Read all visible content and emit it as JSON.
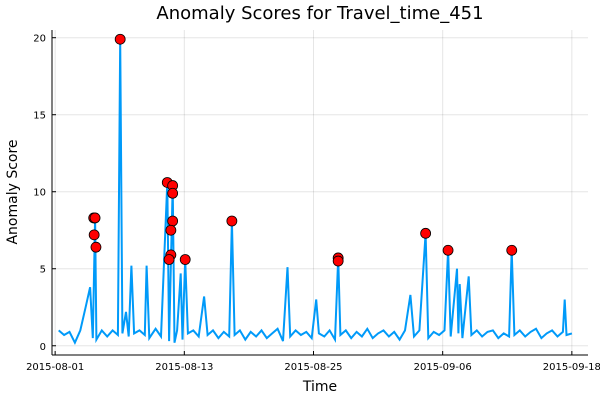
{
  "chart_data": {
    "type": "line",
    "title": "Anomaly Scores for Travel_time_451",
    "x_label": "Time",
    "y_label": "Anomaly Score",
    "xlim": [
      "2015-07-31 17:00",
      "2015-09-19 12:00"
    ],
    "xticks": [
      "2015-08-01",
      "2015-08-13",
      "2015-08-25",
      "2015-09-06",
      "2015-09-18"
    ],
    "ylim": [
      -0.6,
      20.5
    ],
    "yticks": [
      0,
      5,
      10,
      15,
      20
    ],
    "grid": true,
    "series": [
      {
        "kind": "line",
        "color": "#009af9",
        "x": [
          "2015-08-01 08:00",
          "2015-08-01 20:00",
          "2015-08-02 08:00",
          "2015-08-02 20:00",
          "2015-08-03 08:00",
          "2015-08-03 20:00",
          "2015-08-04 06:00",
          "2015-08-04 12:00",
          "2015-08-04 17:00",
          "2015-08-04 20:00",
          "2015-08-05 08:00",
          "2015-08-05 20:00",
          "2015-08-06 08:00",
          "2015-08-06 20:00",
          "2015-08-07 01:00",
          "2015-08-07 06:00",
          "2015-08-07 14:00",
          "2015-08-07 20:00",
          "2015-08-08 02:00",
          "2015-08-08 08:00",
          "2015-08-08 20:00",
          "2015-08-09 08:00",
          "2015-08-09 12:00",
          "2015-08-09 18:00",
          "2015-08-10 08:00",
          "2015-08-10 20:00",
          "2015-08-11 10:00",
          "2015-08-11 14:00",
          "2015-08-11 22:00",
          "2015-08-12 02:00",
          "2015-08-12 08:00",
          "2015-08-12 16:00",
          "2015-08-12 20:00",
          "2015-08-13 02:00",
          "2015-08-13 08:00",
          "2015-08-13 20:00",
          "2015-08-14 08:00",
          "2015-08-14 20:00",
          "2015-08-15 04:00",
          "2015-08-15 16:00",
          "2015-08-16 04:00",
          "2015-08-16 16:00",
          "2015-08-17 04:00",
          "2015-08-17 10:00",
          "2015-08-17 16:00",
          "2015-08-18 04:00",
          "2015-08-18 16:00",
          "2015-08-19 04:00",
          "2015-08-19 16:00",
          "2015-08-20 04:00",
          "2015-08-20 16:00",
          "2015-08-21 04:00",
          "2015-08-21 16:00",
          "2015-08-22 04:00",
          "2015-08-22 14:00",
          "2015-08-22 20:00",
          "2015-08-23 08:00",
          "2015-08-23 20:00",
          "2015-08-24 08:00",
          "2015-08-24 20:00",
          "2015-08-25 06:00",
          "2015-08-25 12:00",
          "2015-08-26 00:00",
          "2015-08-26 12:00",
          "2015-08-27 00:00",
          "2015-08-27 07:00",
          "2015-08-27 12:00",
          "2015-08-28 00:00",
          "2015-08-28 12:00",
          "2015-08-29 00:00",
          "2015-08-29 12:00",
          "2015-08-30 00:00",
          "2015-08-30 12:00",
          "2015-08-31 00:00",
          "2015-08-31 12:00",
          "2015-09-01 00:00",
          "2015-09-01 12:00",
          "2015-09-02 00:00",
          "2015-09-02 12:00",
          "2015-09-03 00:00",
          "2015-09-03 08:00",
          "2015-09-03 20:00",
          "2015-09-04 10:00",
          "2015-09-04 16:00",
          "2015-09-05 04:00",
          "2015-09-05 16:00",
          "2015-09-06 04:00",
          "2015-09-06 12:00",
          "2015-09-06 18:00",
          "2015-09-07 08:00",
          "2015-09-07 11:00",
          "2015-09-07 14:00",
          "2015-09-07 20:00",
          "2015-09-08 10:00",
          "2015-09-08 16:00",
          "2015-09-09 04:00",
          "2015-09-09 16:00",
          "2015-09-10 04:00",
          "2015-09-10 16:00",
          "2015-09-11 04:00",
          "2015-09-11 16:00",
          "2015-09-12 04:00",
          "2015-09-12 10:00",
          "2015-09-12 16:00",
          "2015-09-13 04:00",
          "2015-09-13 16:00",
          "2015-09-14 04:00",
          "2015-09-14 16:00",
          "2015-09-15 04:00",
          "2015-09-15 16:00",
          "2015-09-16 04:00",
          "2015-09-16 16:00",
          "2015-09-17 04:00",
          "2015-09-17 08:00",
          "2015-09-17 12:00",
          "2015-09-18 00:00"
        ],
        "values": [
          1.0,
          0.7,
          0.9,
          0.2,
          1.0,
          2.5,
          3.8,
          0.5,
          8.3,
          0.4,
          1.0,
          0.6,
          1.0,
          0.7,
          19.9,
          0.8,
          2.2,
          0.6,
          5.2,
          0.8,
          1.0,
          0.7,
          5.2,
          0.5,
          1.1,
          0.6,
          10.6,
          0.3,
          10.4,
          0.2,
          1.0,
          4.7,
          0.4,
          5.6,
          0.8,
          1.0,
          0.6,
          3.2,
          0.7,
          1.0,
          0.5,
          0.9,
          0.6,
          8.1,
          0.7,
          1.0,
          0.4,
          0.9,
          0.6,
          1.0,
          0.5,
          0.8,
          1.1,
          0.3,
          5.1,
          0.6,
          1.0,
          0.7,
          0.9,
          0.5,
          3.0,
          0.8,
          0.6,
          1.0,
          0.4,
          5.7,
          0.7,
          1.0,
          0.5,
          0.9,
          0.6,
          1.1,
          0.5,
          0.8,
          1.0,
          0.6,
          0.9,
          0.4,
          1.0,
          3.3,
          0.6,
          1.0,
          7.3,
          0.5,
          0.9,
          0.7,
          1.0,
          6.2,
          0.6,
          5.0,
          0.8,
          4.0,
          0.5,
          4.5,
          0.7,
          1.0,
          0.6,
          0.9,
          1.0,
          0.5,
          0.8,
          0.6,
          6.2,
          0.7,
          1.0,
          0.6,
          0.9,
          1.1,
          0.5,
          0.8,
          1.0,
          0.6,
          0.9,
          3.0,
          0.7,
          0.8
        ]
      },
      {
        "kind": "scatter",
        "color": "#ff0000",
        "x": [
          "2015-08-04 14:00",
          "2015-08-04 17:00",
          "2015-08-04 15:00",
          "2015-08-04 19:00",
          "2015-08-07 01:00",
          "2015-08-11 10:00",
          "2015-08-11 22:00",
          "2015-08-11 22:00",
          "2015-08-11 22:00",
          "2015-08-11 18:00",
          "2015-08-11 18:00",
          "2015-08-11 14:00",
          "2015-08-13 02:00",
          "2015-08-17 10:00",
          "2015-08-27 07:00",
          "2015-08-27 07:00",
          "2015-09-04 10:00",
          "2015-09-06 12:00",
          "2015-09-12 10:00"
        ],
        "values": [
          8.3,
          8.3,
          7.2,
          6.4,
          19.9,
          10.6,
          10.4,
          9.9,
          8.1,
          7.5,
          5.9,
          5.6,
          5.6,
          8.1,
          5.7,
          5.5,
          7.3,
          6.2,
          6.2
        ]
      }
    ]
  }
}
